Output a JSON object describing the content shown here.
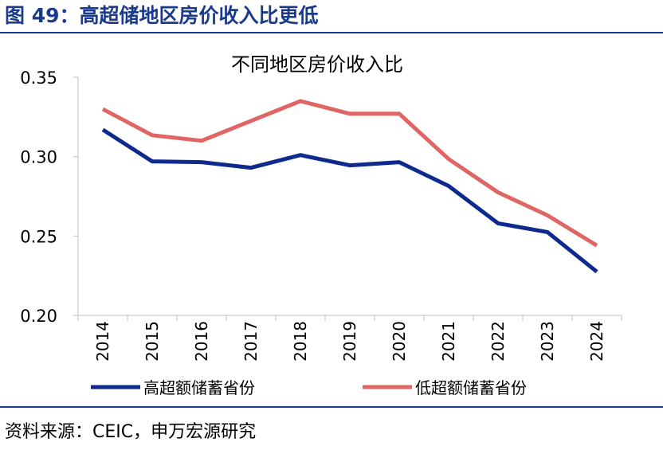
{
  "figure": {
    "title": "图 49：高超储地区房价收入比更低",
    "source": "资料来源：CEIC，申万宏源研究"
  },
  "chart_data": {
    "type": "line",
    "title": "不同地区房价收入比",
    "xlabel": "",
    "ylabel": "",
    "categories": [
      "2014",
      "2015",
      "2016",
      "2017",
      "2018",
      "2019",
      "2020",
      "2021",
      "2022",
      "2023",
      "2024"
    ],
    "yticks": [
      "0.20",
      "0.25",
      "0.30",
      "0.35"
    ],
    "ylim": [
      0.2,
      0.35
    ],
    "grid": false,
    "legend": "bottom",
    "series": [
      {
        "name": "高超额储蓄省份",
        "color": "#0d2a8c",
        "values": [
          0.317,
          0.297,
          0.2965,
          0.293,
          0.301,
          0.2945,
          0.2965,
          0.2815,
          0.258,
          0.2525,
          0.2275
        ]
      },
      {
        "name": "低超额储蓄省份",
        "color": "#e06666",
        "values": [
          0.33,
          0.3135,
          0.31,
          0.3225,
          0.335,
          0.327,
          0.327,
          0.2985,
          0.2775,
          0.263,
          0.244
        ]
      }
    ]
  }
}
